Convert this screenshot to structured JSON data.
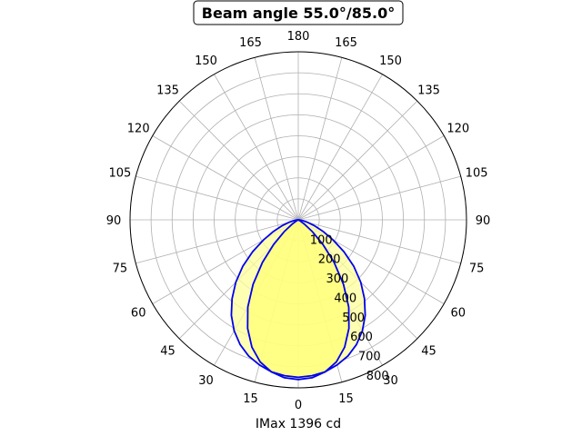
{
  "chart_data": {
    "type": "polar-line",
    "title": "Beam angle 55.0°/85.0°",
    "xlabel": "IMax 1396 cd",
    "angle_ticks": [
      {
        "deg": 180,
        "label": "180"
      },
      {
        "deg": 165,
        "label": "165",
        "side": "left"
      },
      {
        "deg": 165,
        "label": "165",
        "side": "right"
      },
      {
        "deg": 150,
        "label": "150",
        "side": "left"
      },
      {
        "deg": 150,
        "label": "150",
        "side": "right"
      },
      {
        "deg": 135,
        "label": "135",
        "side": "left"
      },
      {
        "deg": 135,
        "label": "135",
        "side": "right"
      },
      {
        "deg": 120,
        "label": "120",
        "side": "left"
      },
      {
        "deg": 120,
        "label": "120",
        "side": "right"
      },
      {
        "deg": 105,
        "label": "105",
        "side": "left"
      },
      {
        "deg": 105,
        "label": "105",
        "side": "right"
      },
      {
        "deg": 90,
        "label": "90",
        "side": "left"
      },
      {
        "deg": 90,
        "label": "90",
        "side": "right"
      },
      {
        "deg": 75,
        "label": "75",
        "side": "left"
      },
      {
        "deg": 75,
        "label": "75",
        "side": "right"
      },
      {
        "deg": 60,
        "label": "60",
        "side": "left"
      },
      {
        "deg": 60,
        "label": "60",
        "side": "right"
      },
      {
        "deg": 45,
        "label": "45",
        "side": "left"
      },
      {
        "deg": 45,
        "label": "45",
        "side": "right"
      },
      {
        "deg": 30,
        "label": "30",
        "side": "left"
      },
      {
        "deg": 30,
        "label": "30",
        "side": "right"
      },
      {
        "deg": 15,
        "label": "15",
        "side": "left"
      },
      {
        "deg": 15,
        "label": "15",
        "side": "right"
      },
      {
        "deg": 0,
        "label": "0"
      }
    ],
    "r_ticks": [
      100,
      200,
      300,
      400,
      500,
      600,
      700,
      800
    ],
    "rlim": [
      0,
      800
    ],
    "grid": true,
    "series": [
      {
        "plane": "wide",
        "color": "#0000ee",
        "fill": "#ffff99",
        "points": [
          [
            0,
            750
          ],
          [
            5,
            745
          ],
          [
            10,
            735
          ],
          [
            15,
            715
          ],
          [
            20,
            690
          ],
          [
            25,
            655
          ],
          [
            30,
            610
          ],
          [
            35,
            555
          ],
          [
            40,
            490
          ],
          [
            45,
            420
          ],
          [
            50,
            345
          ],
          [
            55,
            265
          ],
          [
            60,
            190
          ],
          [
            65,
            130
          ],
          [
            70,
            80
          ],
          [
            75,
            45
          ],
          [
            80,
            20
          ],
          [
            85,
            8
          ],
          [
            90,
            0
          ]
        ]
      },
      {
        "plane": "narrow",
        "color": "#0000ee",
        "fill": "#ffff77",
        "points": [
          [
            0,
            760
          ],
          [
            5,
            755
          ],
          [
            10,
            735
          ],
          [
            15,
            700
          ],
          [
            20,
            645
          ],
          [
            25,
            570
          ],
          [
            30,
            480
          ],
          [
            35,
            375
          ],
          [
            40,
            265
          ],
          [
            45,
            165
          ],
          [
            50,
            85
          ],
          [
            55,
            35
          ],
          [
            60,
            10
          ],
          [
            65,
            0
          ]
        ]
      }
    ]
  }
}
